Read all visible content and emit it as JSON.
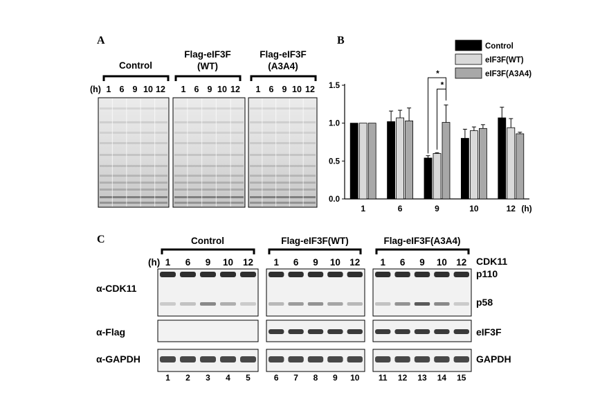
{
  "panel_a": {
    "letter": "A",
    "groups": [
      {
        "title": [
          "Control"
        ],
        "lanes": [
          "1",
          "6",
          "9",
          "10",
          "12"
        ]
      },
      {
        "title": [
          "Flag-eIF3F",
          "(WT)"
        ],
        "lanes": [
          "1",
          "6",
          "9",
          "10",
          "12"
        ]
      },
      {
        "title": [
          "Flag-eIF3F",
          "(A3A4)"
        ],
        "lanes": [
          "1",
          "6",
          "9",
          "10",
          "12"
        ]
      }
    ],
    "time_unit": "(h)"
  },
  "panel_b": {
    "letter": "B"
  },
  "chart_data": {
    "type": "bar",
    "categories": [
      "1",
      "6",
      "9",
      "10",
      "12"
    ],
    "xlabel": "(h)",
    "ylabel": "",
    "ylim": [
      0,
      1.5
    ],
    "yticks": [
      "0.0",
      "0.5",
      "1.0",
      "1.5"
    ],
    "legend": "top-right",
    "series": [
      {
        "name": "Control",
        "color": "#000000",
        "values": [
          1.0,
          1.02,
          0.54,
          0.8,
          1.07
        ],
        "errors": [
          0,
          0.14,
          0.03,
          0.12,
          0.14
        ]
      },
      {
        "name": "eIF3F(WT)",
        "color": "#d9d9d9",
        "values": [
          1.0,
          1.07,
          0.6,
          0.9,
          0.94
        ],
        "errors": [
          0,
          0.1,
          0.01,
          0.05,
          0.12
        ]
      },
      {
        "name": "eIF3F(A3A4)",
        "color": "#a8a8a8",
        "values": [
          1.0,
          1.03,
          1.01,
          0.93,
          0.86
        ],
        "errors": [
          0,
          0.17,
          0.23,
          0.05,
          0.02
        ]
      }
    ],
    "significance": [
      "*",
      "*"
    ]
  },
  "panel_c": {
    "letter": "C",
    "groups": [
      {
        "title": "Control",
        "lanes": [
          "1",
          "6",
          "9",
          "10",
          "12"
        ],
        "numbers": [
          "1",
          "2",
          "3",
          "4",
          "5"
        ]
      },
      {
        "title": "Flag-eIF3F(WT)",
        "lanes": [
          "1",
          "6",
          "9",
          "10",
          "12"
        ],
        "numbers": [
          "6",
          "7",
          "8",
          "9",
          "10"
        ]
      },
      {
        "title": "Flag-eIF3F(A3A4)",
        "lanes": [
          "1",
          "6",
          "9",
          "10",
          "12"
        ],
        "numbers": [
          "11",
          "12",
          "13",
          "14",
          "15"
        ]
      }
    ],
    "time_unit": "(h)",
    "row_labels": [
      "α-CDK11",
      "α-Flag",
      "α-GAPDH"
    ],
    "right_labels": {
      "cdk11": "CDK11",
      "p110": "p110",
      "p58": "p58",
      "flag": "eIF3F",
      "gapdh": "GAPDH"
    }
  }
}
